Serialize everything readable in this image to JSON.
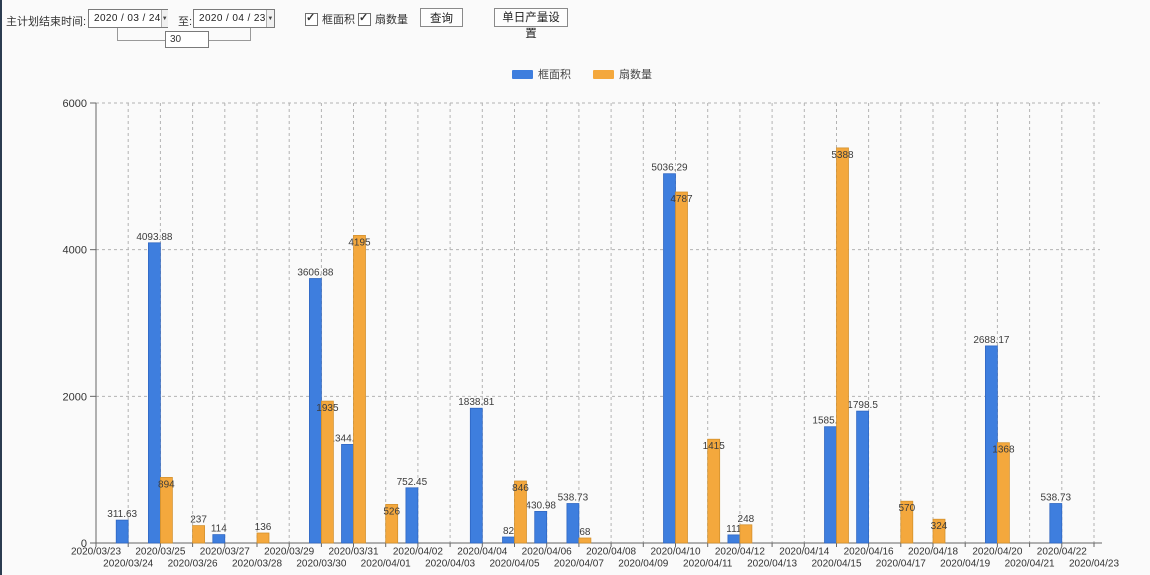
{
  "icons": {
    "dropdown_arrow": "▼",
    "check": "✓"
  },
  "toolbar": {
    "plan_end_label": "主计划结束时间:",
    "from_date": "2020 / 03 / 24",
    "to_label": "至:",
    "to_date": "2020 / 04 / 23",
    "interval_days": "30",
    "checkboxes": [
      {
        "label": "框面积",
        "checked": true
      },
      {
        "label": "扇数量",
        "checked": true
      }
    ],
    "query_button": "查询",
    "daily_output_button": "单日产量设置"
  },
  "legend": {
    "items": [
      {
        "label": "框面积",
        "color": "#3e7ede"
      },
      {
        "label": "扇数量",
        "color": "#f4a83d"
      }
    ]
  },
  "chart_data": {
    "type": "bar",
    "title": "",
    "xlabel": "",
    "ylabel": "",
    "ylim": [
      0,
      6000
    ],
    "yticks": [
      0,
      2000,
      4000,
      6000
    ],
    "grid": true,
    "legend_position": "top",
    "categories": [
      "2020/03/23",
      "2020/03/24",
      "2020/03/25",
      "2020/03/26",
      "2020/03/27",
      "2020/03/28",
      "2020/03/29",
      "2020/03/30",
      "2020/03/31",
      "2020/04/01",
      "2020/04/02",
      "2020/04/03",
      "2020/04/04",
      "2020/04/05",
      "2020/04/06",
      "2020/04/07",
      "2020/04/08",
      "2020/04/09",
      "2020/04/10",
      "2020/04/11",
      "2020/04/12",
      "2020/04/13",
      "2020/04/14",
      "2020/04/15",
      "2020/04/16",
      "2020/04/17",
      "2020/04/18",
      "2020/04/19",
      "2020/04/20",
      "2020/04/21",
      "2020/04/22",
      "2020/04/23"
    ],
    "series": [
      {
        "name": "框面积",
        "color": "#3e7ede",
        "stroke": "#2d64c0",
        "values": [
          null,
          311.63,
          4093.88,
          null,
          114,
          null,
          null,
          3606.88,
          1344.95,
          null,
          752.45,
          null,
          1838.81,
          82,
          430.98,
          538.73,
          null,
          null,
          5036.29,
          null,
          111,
          null,
          null,
          1585.96,
          1798.5,
          null,
          null,
          null,
          2688.17,
          null,
          538.73,
          null
        ]
      },
      {
        "name": "扇数量",
        "color": "#f4a83d",
        "stroke": "#d18f2c",
        "values": [
          null,
          null,
          894,
          237,
          null,
          136,
          null,
          1935,
          4195,
          526,
          null,
          null,
          null,
          846,
          null,
          68,
          null,
          null,
          4787,
          1415,
          248,
          null,
          null,
          5388,
          null,
          570,
          324,
          null,
          1368,
          null,
          null,
          null
        ]
      }
    ]
  }
}
